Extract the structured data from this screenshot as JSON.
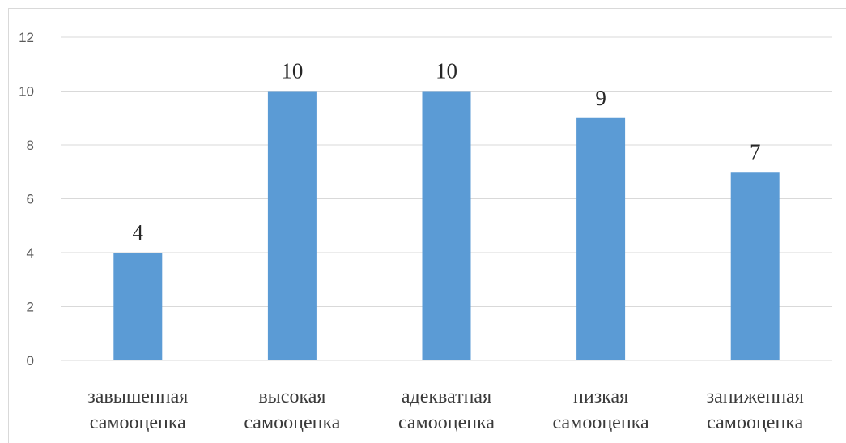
{
  "chart_data": {
    "type": "bar",
    "categories": [
      [
        "завышенная",
        "самооценка"
      ],
      [
        "высокая",
        "самооценка"
      ],
      [
        "адекватная",
        "самооценка"
      ],
      [
        "низкая",
        "самооценка"
      ],
      [
        "заниженная",
        "самооценка"
      ]
    ],
    "values": [
      4,
      10,
      10,
      9,
      7
    ],
    "data_labels": [
      "4",
      "10",
      "10",
      "9",
      "7"
    ],
    "y_ticks": [
      "0",
      "2",
      "4",
      "6",
      "8",
      "10",
      "12"
    ],
    "ylim": [
      0,
      12
    ],
    "grid": true,
    "bar_color": "#5b9bd5",
    "title": "",
    "xlabel": "",
    "ylabel": ""
  }
}
